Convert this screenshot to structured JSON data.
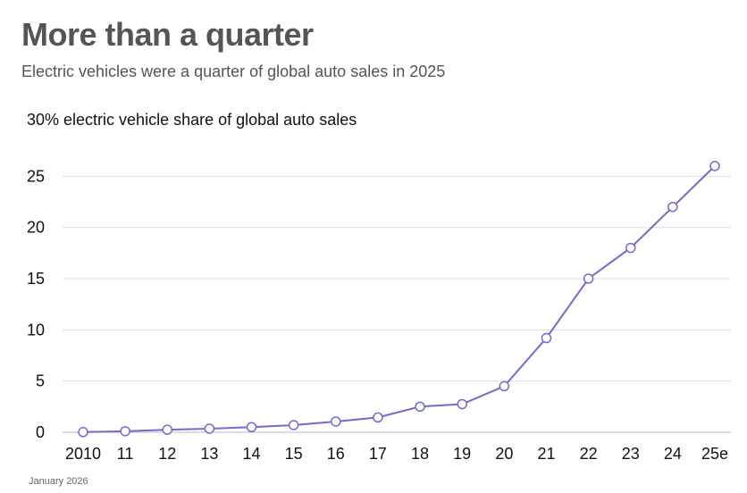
{
  "header": {
    "title": "More than a quarter",
    "subtitle": "Electric vehicles were a quarter of global auto sales in 2025"
  },
  "footnote": "January 2026",
  "colors": {
    "line": "#6f6ccc",
    "marker_fill": "#ffffff",
    "grid": "#dddddd"
  },
  "chart_data": {
    "type": "line",
    "title": "30% electric vehicle share of global auto sales",
    "categories": [
      "2010",
      "11",
      "12",
      "13",
      "14",
      "15",
      "16",
      "17",
      "18",
      "19",
      "20",
      "21",
      "22",
      "23",
      "24",
      "25e"
    ],
    "values": [
      0.02,
      0.1,
      0.25,
      0.35,
      0.5,
      0.7,
      1.05,
      1.45,
      2.5,
      2.75,
      4.5,
      9.2,
      15,
      18,
      22,
      26
    ],
    "yticks": [
      0,
      5,
      10,
      15,
      20,
      25
    ],
    "ylim": [
      0,
      30
    ],
    "xlabel": "",
    "ylabel": "",
    "grid": true
  }
}
